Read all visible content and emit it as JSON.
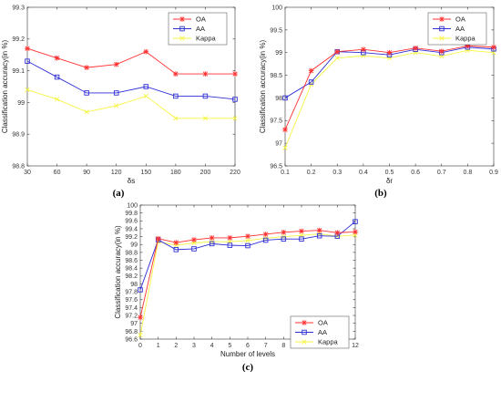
{
  "colors": {
    "OA": "#ff3030",
    "AA": "#2f2fd6",
    "Kappa": "#f5f542"
  },
  "chart_data": [
    {
      "type": "line",
      "panel_label": "(a)",
      "xlabel": "δs",
      "ylabel": "Classification accuracy(in %)",
      "categories": [
        "30",
        "60",
        "90",
        "120",
        "150",
        "180",
        "200",
        "220"
      ],
      "ylim": [
        98.8,
        99.3
      ],
      "yticks": [
        "98.8",
        "98.9",
        "99",
        "99.1",
        "99.2",
        "99.3"
      ],
      "legend_position": "top-right",
      "series": [
        {
          "name": "OA",
          "marker": "star",
          "values": [
            99.17,
            99.14,
            99.11,
            99.12,
            99.16,
            99.09,
            99.09,
            99.09
          ]
        },
        {
          "name": "AA",
          "marker": "square",
          "values": [
            99.13,
            99.08,
            99.03,
            99.03,
            99.05,
            99.02,
            99.02,
            99.01
          ]
        },
        {
          "name": "Kappa",
          "marker": "x",
          "values": [
            99.04,
            99.01,
            98.97,
            98.99,
            99.02,
            98.95,
            98.95,
            98.95
          ]
        }
      ]
    },
    {
      "type": "line",
      "panel_label": "(b)",
      "xlabel": "δr",
      "ylabel": "Classification accuracy(in %)",
      "x": [
        0.1,
        0.2,
        0.3,
        0.4,
        0.5,
        0.6,
        0.7,
        0.8,
        0.9
      ],
      "xticks": [
        "0.1",
        "0.2",
        "0.3",
        "0.4",
        "0.5",
        "0.6",
        "0.7",
        "0.8",
        "0.9"
      ],
      "xlim": [
        0.1,
        0.9
      ],
      "ylim": [
        96.5,
        100
      ],
      "yticks": [
        "96.5",
        "97",
        "97.5",
        "98",
        "98.5",
        "99",
        "99.5",
        "100"
      ],
      "legend_position": "top-right",
      "series": [
        {
          "name": "OA",
          "marker": "star",
          "values": [
            97.3,
            98.6,
            99.02,
            99.07,
            99.0,
            99.1,
            99.03,
            99.15,
            99.12
          ]
        },
        {
          "name": "AA",
          "marker": "square",
          "values": [
            98.0,
            98.35,
            99.02,
            99.0,
            98.95,
            99.07,
            99.0,
            99.12,
            99.08
          ]
        },
        {
          "name": "Kappa",
          "marker": "x",
          "values": [
            96.9,
            98.3,
            98.88,
            98.93,
            98.88,
            99.0,
            98.92,
            99.05,
            99.0
          ]
        }
      ]
    },
    {
      "type": "line",
      "panel_label": "(c)",
      "xlabel": "Number of levels",
      "ylabel": "Classification accuracy(in %)",
      "x": [
        0,
        1,
        2,
        3,
        4,
        5,
        6,
        7,
        8,
        9,
        10,
        11,
        12
      ],
      "xticks": [
        "0",
        "1",
        "2",
        "3",
        "4",
        "5",
        "6",
        "7",
        "8",
        "9",
        "10",
        "11",
        "12"
      ],
      "xlim": [
        0,
        12
      ],
      "ylim": [
        96.6,
        100
      ],
      "yticks": [
        "96.6",
        "96.8",
        "97",
        "97.2",
        "97.4",
        "97.6",
        "97.8",
        "98",
        "98.2",
        "98.4",
        "98.6",
        "98.8",
        "99",
        "99.2",
        "99.4",
        "99.6",
        "99.8",
        "100"
      ],
      "legend_position": "bottom-right",
      "series": [
        {
          "name": "OA",
          "marker": "star",
          "values": [
            97.15,
            99.15,
            99.05,
            99.12,
            99.17,
            99.17,
            99.21,
            99.26,
            99.31,
            99.34,
            99.36,
            99.3,
            99.32
          ]
        },
        {
          "name": "AA",
          "marker": "square",
          "values": [
            97.85,
            99.12,
            98.87,
            98.89,
            99.02,
            98.98,
            98.97,
            99.11,
            99.14,
            99.14,
            99.22,
            99.21,
            99.58
          ]
        },
        {
          "name": "Kappa",
          "marker": "x",
          "values": [
            96.7,
            99.07,
            98.98,
            99.04,
            99.07,
            99.07,
            99.1,
            99.16,
            99.2,
            99.23,
            99.27,
            99.21,
            99.24
          ]
        }
      ]
    }
  ]
}
